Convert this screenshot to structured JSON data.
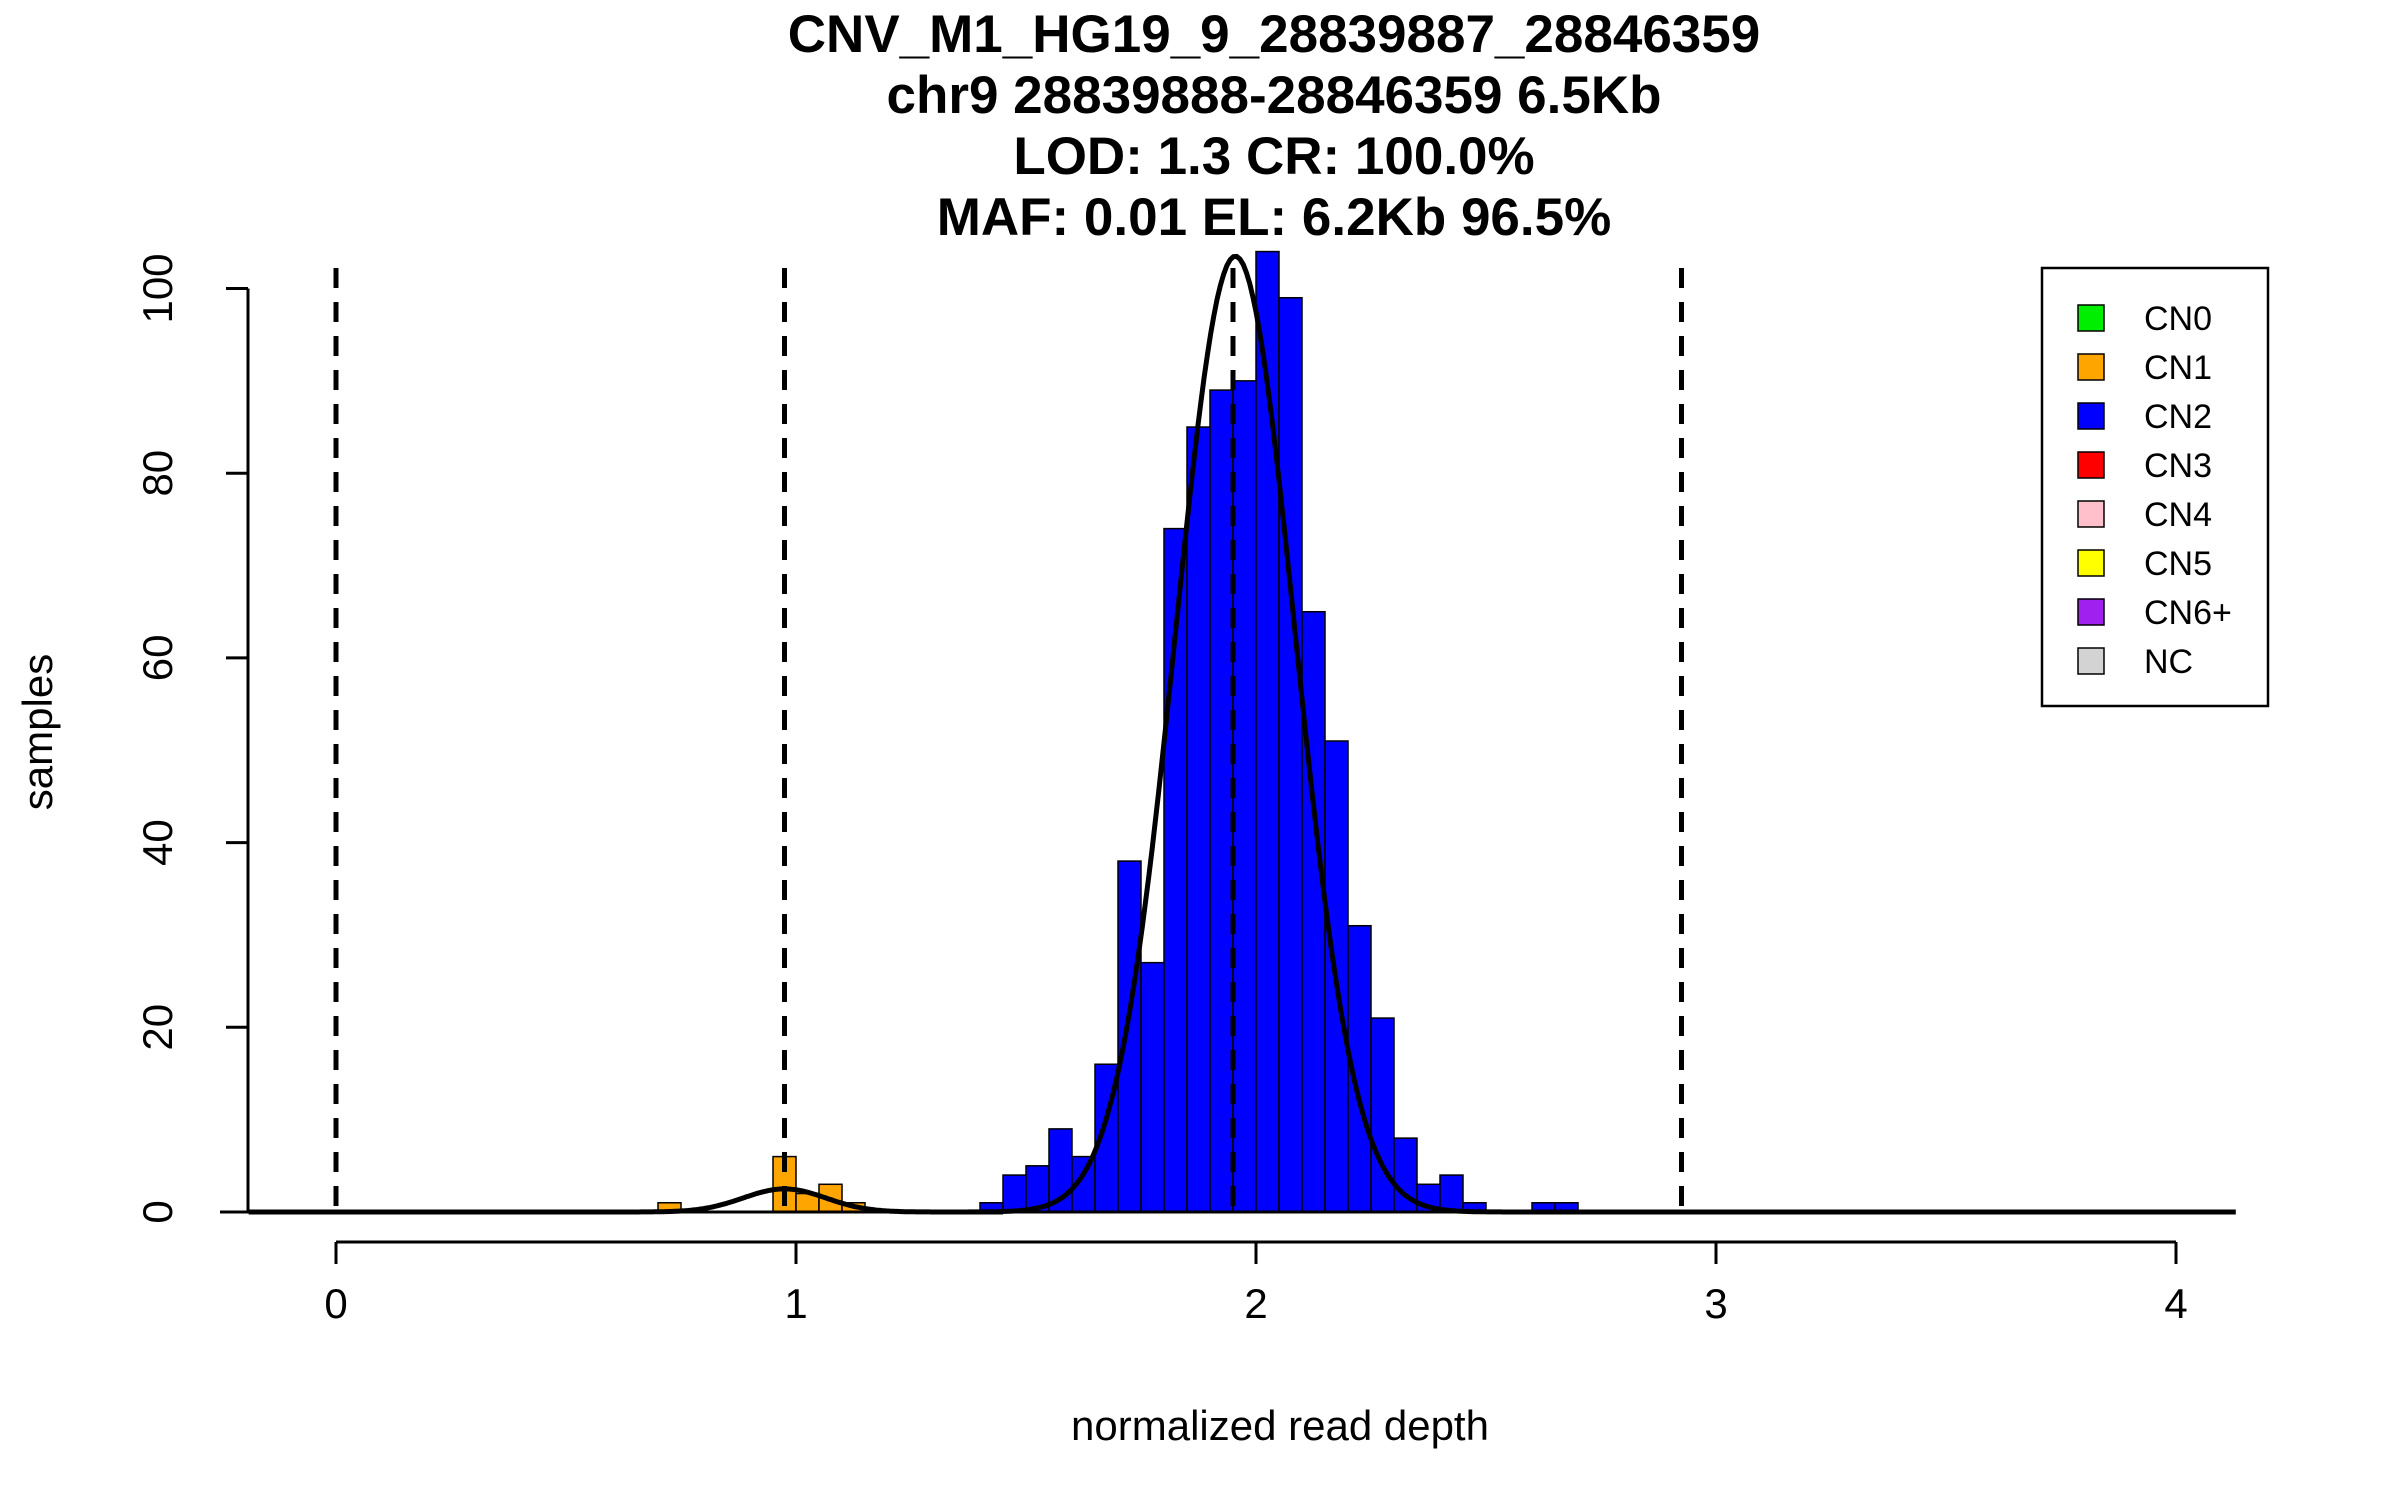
{
  "chart_data": {
    "type": "bar",
    "title_lines": [
      "CNV_M1_HG19_9_28839887_28846359",
      "chr9 28839888-28846359 6.5Kb",
      "LOD: 1.3 CR: 100.0%",
      "MAF: 0.01 EL: 6.2Kb 96.5%"
    ],
    "xlabel": "normalized read depth",
    "ylabel": "samples",
    "xlim": [
      -0.19,
      4.13
    ],
    "ylim": [
      0,
      104
    ],
    "xticks": [
      0,
      1,
      2,
      3,
      4
    ],
    "yticks": [
      0,
      20,
      40,
      60,
      80,
      100
    ],
    "bin_width": 0.05,
    "dashed_lines_x": [
      0,
      0.975,
      1.95,
      2.925
    ],
    "legend_position": "top-right",
    "legend": [
      {
        "label": "CN0",
        "color": "#00ee00"
      },
      {
        "label": "CN1",
        "color": "#ffa500"
      },
      {
        "label": "CN2",
        "color": "#0000ff"
      },
      {
        "label": "CN3",
        "color": "#ff0000"
      },
      {
        "label": "CN4",
        "color": "#ffc0cb"
      },
      {
        "label": "CN5",
        "color": "#ffff00"
      },
      {
        "label": "CN6+",
        "color": "#a020f0"
      },
      {
        "label": "NC",
        "color": "#d3d3d3"
      }
    ],
    "series": [
      {
        "name": "CN1",
        "color": "#ffa500",
        "bins": [
          {
            "x0": 0.7,
            "value": 1
          },
          {
            "x0": 0.75,
            "value": 0
          },
          {
            "x0": 0.8,
            "value": 0
          },
          {
            "x0": 0.85,
            "value": 0
          },
          {
            "x0": 0.9,
            "value": 0
          },
          {
            "x0": 0.95,
            "value": 6
          },
          {
            "x0": 1.0,
            "value": 2
          },
          {
            "x0": 1.05,
            "value": 3
          },
          {
            "x0": 1.1,
            "value": 1
          }
        ]
      },
      {
        "name": "CN2",
        "color": "#0000ff",
        "bins": [
          {
            "x0": 1.4,
            "value": 1
          },
          {
            "x0": 1.45,
            "value": 4
          },
          {
            "x0": 1.5,
            "value": 5
          },
          {
            "x0": 1.55,
            "value": 9
          },
          {
            "x0": 1.6,
            "value": 6
          },
          {
            "x0": 1.65,
            "value": 16
          },
          {
            "x0": 1.7,
            "value": 38
          },
          {
            "x0": 1.75,
            "value": 27
          },
          {
            "x0": 1.8,
            "value": 74
          },
          {
            "x0": 1.85,
            "value": 85
          },
          {
            "x0": 1.9,
            "value": 89
          },
          {
            "x0": 1.95,
            "value": 90
          },
          {
            "x0": 2.0,
            "value": 104
          },
          {
            "x0": 2.05,
            "value": 99
          },
          {
            "x0": 2.1,
            "value": 65
          },
          {
            "x0": 2.15,
            "value": 51
          },
          {
            "x0": 2.2,
            "value": 31
          },
          {
            "x0": 2.25,
            "value": 21
          },
          {
            "x0": 2.3,
            "value": 8
          },
          {
            "x0": 2.35,
            "value": 3
          },
          {
            "x0": 2.4,
            "value": 4
          },
          {
            "x0": 2.45,
            "value": 1
          },
          {
            "x0": 2.5,
            "value": 0
          },
          {
            "x0": 2.55,
            "value": 0
          },
          {
            "x0": 2.6,
            "value": 1
          },
          {
            "x0": 2.65,
            "value": 1
          }
        ]
      }
    ],
    "fit_curves": [
      {
        "mean": 0.975,
        "sd": 0.09,
        "peak": 2.5,
        "x_range": [
          -0.19,
          1.45
        ]
      },
      {
        "mean": 1.955,
        "sd": 0.13,
        "peak": 103.5,
        "x_range": [
          1.3,
          4.13
        ]
      }
    ]
  }
}
